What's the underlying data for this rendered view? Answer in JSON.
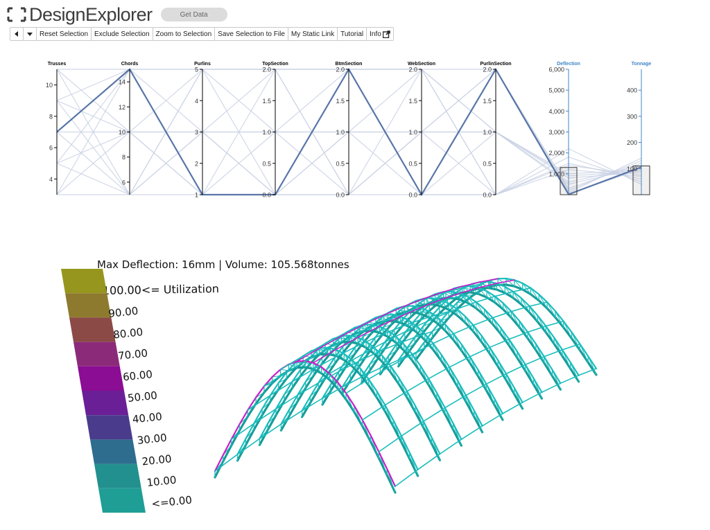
{
  "app": {
    "logo_text": "DesignExplorer",
    "get_data_label": "Get Data"
  },
  "toolbar": {
    "prev_icon": "caret-left-icon",
    "next_icon": "caret-down-icon",
    "reset_selection": "Reset Selection",
    "exclude_selection": "Exclude Selection",
    "zoom_to_selection": "Zoom to Selection",
    "save_selection": "Save Selection to File",
    "static_link": "My Static Link",
    "tutorial": "Tutorial",
    "info": "Info",
    "info_icon": "external-link-icon"
  },
  "parallel_coords": {
    "axes": [
      {
        "name": "Trusses",
        "min": 3,
        "max": 11,
        "ticks": [
          "4",
          "6",
          "8",
          "10"
        ],
        "tick_values": [
          4,
          6,
          8,
          10
        ],
        "output": false
      },
      {
        "name": "Chords",
        "min": 5,
        "max": 15,
        "ticks": [
          "6",
          "8",
          "10",
          "12",
          "14"
        ],
        "tick_values": [
          6,
          8,
          10,
          12,
          14
        ],
        "output": false
      },
      {
        "name": "Purlins",
        "min": 1,
        "max": 5,
        "ticks": [
          "1",
          "2",
          "3",
          "4",
          "5"
        ],
        "tick_values": [
          1,
          2,
          3,
          4,
          5
        ],
        "output": false
      },
      {
        "name": "TopSection",
        "min": 0,
        "max": 2,
        "ticks": [
          "0.0",
          "0.5",
          "1.0",
          "1.5",
          "2.0"
        ],
        "tick_values": [
          0,
          0.5,
          1,
          1.5,
          2
        ],
        "output": false
      },
      {
        "name": "BtmSection",
        "min": 0,
        "max": 2,
        "ticks": [
          "0.0",
          "0.5",
          "1.0",
          "1.5",
          "2.0"
        ],
        "tick_values": [
          0,
          0.5,
          1,
          1.5,
          2
        ],
        "output": false
      },
      {
        "name": "WebSection",
        "min": 0,
        "max": 2,
        "ticks": [
          "0.0",
          "0.5",
          "1.0",
          "1.5",
          "2.0"
        ],
        "tick_values": [
          0,
          0.5,
          1,
          1.5,
          2
        ],
        "output": false
      },
      {
        "name": "PurlinSection",
        "min": 0,
        "max": 2,
        "ticks": [
          "0.0",
          "0.5",
          "1.0",
          "1.5",
          "2.0"
        ],
        "tick_values": [
          0,
          0.5,
          1,
          1.5,
          2
        ],
        "output": false
      },
      {
        "name": "Deflection",
        "min": 0,
        "max": 6000,
        "ticks": [
          "1,000",
          "2,000",
          "3,000",
          "4,000",
          "5,000",
          "6,000"
        ],
        "tick_values": [
          1000,
          2000,
          3000,
          4000,
          5000,
          6000
        ],
        "output": true
      },
      {
        "name": "Tonnage",
        "min": 0,
        "max": 480,
        "ticks": [
          "100",
          "200",
          "300",
          "400"
        ],
        "tick_values": [
          100,
          200,
          300,
          400
        ],
        "output": true
      }
    ],
    "selected_design": [
      7,
      15,
      1,
      0,
      2,
      0,
      2,
      16,
      105.568
    ],
    "brushes": [
      {
        "axis": "Deflection",
        "range": [
          0,
          1300
        ]
      },
      {
        "axis": "Tonnage",
        "range": [
          0,
          110
        ]
      }
    ],
    "background_designs": [
      [
        11,
        15,
        5,
        2,
        2,
        2,
        2,
        40,
        98
      ],
      [
        11,
        5,
        3,
        1,
        0,
        1,
        1,
        900,
        90
      ],
      [
        9,
        10,
        1,
        0,
        1,
        2,
        0,
        1500,
        60
      ],
      [
        9,
        15,
        5,
        2,
        0,
        1,
        1,
        600,
        110
      ],
      [
        7,
        5,
        3,
        1,
        2,
        0,
        0,
        1200,
        70
      ],
      [
        7,
        10,
        5,
        0,
        1,
        1,
        2,
        300,
        120
      ],
      [
        5,
        5,
        1,
        2,
        2,
        2,
        1,
        800,
        85
      ],
      [
        5,
        15,
        3,
        0,
        0,
        0,
        0,
        1800,
        50
      ],
      [
        3,
        10,
        1,
        1,
        1,
        1,
        2,
        200,
        130
      ],
      [
        3,
        5,
        5,
        2,
        2,
        0,
        1,
        1000,
        95
      ],
      [
        11,
        10,
        3,
        0,
        0,
        2,
        0,
        2200,
        40
      ],
      [
        9,
        5,
        5,
        1,
        1,
        0,
        2,
        100,
        140
      ],
      [
        5,
        10,
        3,
        2,
        0,
        1,
        0,
        1400,
        75
      ],
      [
        3,
        15,
        1,
        0,
        2,
        2,
        1,
        500,
        105
      ]
    ]
  },
  "viz": {
    "title_prefix": "Max Deflection: 16mm | Volume: 105.568tonnes",
    "legend_title": "100.00<= Utilization",
    "legend_labels": [
      "90.00",
      "80.00",
      "70.00",
      "60.00",
      "50.00",
      "40.00",
      "30.00",
      "20.00",
      "10.00",
      "<=0.00"
    ],
    "legend_colors": [
      "#96961e",
      "#8e7a2e",
      "#8b4a46",
      "#8c2a7a",
      "#8a0d93",
      "#6a1f96",
      "#4b3b8c",
      "#2e6d8e",
      "#22908e",
      "#1f9e96"
    ],
    "structure_colors": {
      "beam": "#1bbdbd",
      "main": "#179c98",
      "highlight": "#c81fc8"
    }
  }
}
